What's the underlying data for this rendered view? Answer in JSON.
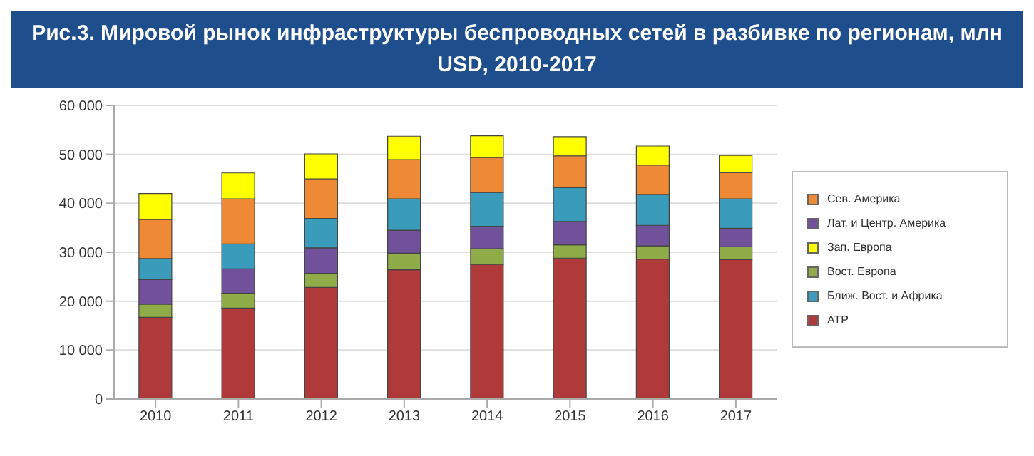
{
  "chart_data": {
    "type": "bar",
    "title": "Рис.3. Мировой рынок инфраструктуры беспроводных сетей в разбивке по регионам, млн USD, 2010-2017",
    "categories": [
      "2010",
      "2011",
      "2012",
      "2013",
      "2014",
      "2015",
      "2016",
      "2017"
    ],
    "stacked": true,
    "series": [
      {
        "name": "АТР",
        "color": "#b03a3a",
        "values": [
          16700,
          18600,
          22800,
          26400,
          27500,
          28800,
          28600,
          28500
        ]
      },
      {
        "name": "Вост. Европа",
        "color": "#8fac48",
        "values": [
          2700,
          3000,
          2900,
          3400,
          3200,
          2700,
          2700,
          2600
        ]
      },
      {
        "name": "Лат. и Центр. Америка",
        "color": "#71519a",
        "values": [
          5000,
          5000,
          5200,
          4700,
          4600,
          4800,
          4200,
          3800
        ]
      },
      {
        "name": "Ближ. Вост. и Африка",
        "color": "#3a9bbb",
        "values": [
          4300,
          5100,
          6000,
          6400,
          6900,
          6900,
          6300,
          6000
        ]
      },
      {
        "name": "Сев. Америка",
        "color": "#ee8a35",
        "values": [
          8000,
          9200,
          8100,
          8000,
          7200,
          6500,
          6000,
          5400
        ]
      },
      {
        "name": "Зап. Европа",
        "color": "#ffff00",
        "values": [
          5300,
          5300,
          5100,
          4800,
          4400,
          3900,
          3900,
          3500
        ]
      }
    ],
    "ylim": [
      0,
      60000
    ],
    "yticks": [
      0,
      10000,
      20000,
      30000,
      40000,
      50000,
      60000
    ],
    "grid": "y",
    "legend": "right"
  }
}
